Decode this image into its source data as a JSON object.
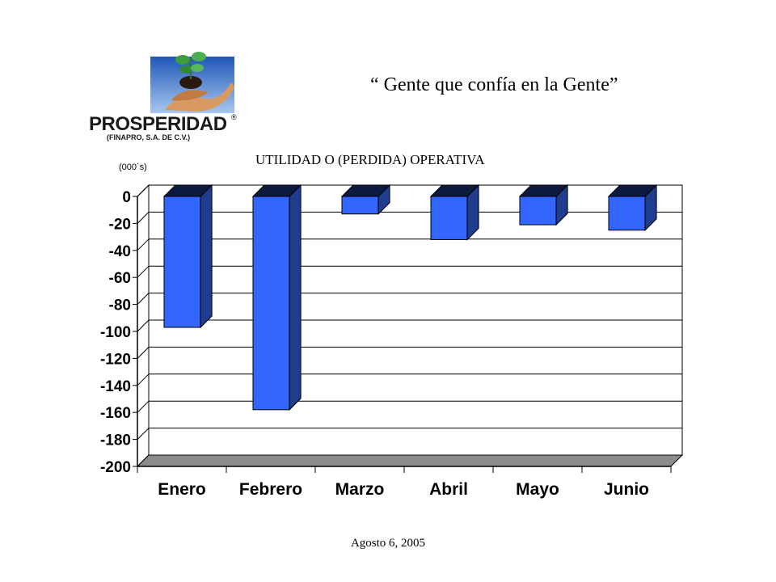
{
  "header": {
    "logo_name": "PROSPERIDAD",
    "logo_registered": "®",
    "logo_subtitle": "(FINAPRO, S.A. DE C.V.)",
    "slogan": "“ Gente que confía en la Gente”"
  },
  "chart_data": {
    "type": "bar",
    "title": "UTILIDAD O (PERDIDA) OPERATIVA",
    "unit_label": "(000´s)",
    "categories": [
      "Enero",
      "Febrero",
      "Marzo",
      "Abril",
      "Mayo",
      "Junio"
    ],
    "values": [
      -97,
      -158,
      -13,
      -32,
      -21,
      -25
    ],
    "ylim": [
      -200,
      0
    ],
    "yticks": [
      0,
      -20,
      -40,
      -60,
      -80,
      -100,
      -120,
      -140,
      -160,
      -180,
      -200
    ],
    "grid": true,
    "legend": false,
    "colors": {
      "bar_front": "#3366ff",
      "bar_side": "#1f3c8f",
      "bar_top": "#0d1a40",
      "floor": "#8c8c8c"
    }
  },
  "footer": {
    "date": "Agosto 6, 2005"
  }
}
